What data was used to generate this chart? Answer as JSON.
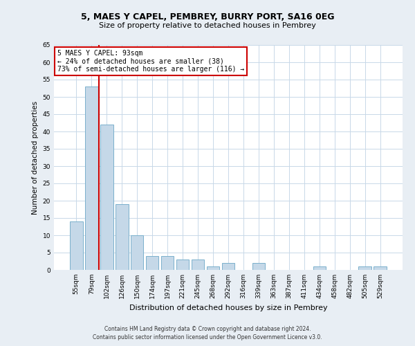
{
  "title": "5, MAES Y CAPEL, PEMBREY, BURRY PORT, SA16 0EG",
  "subtitle": "Size of property relative to detached houses in Pembrey",
  "xlabel": "Distribution of detached houses by size in Pembrey",
  "ylabel": "Number of detached properties",
  "bar_labels": [
    "55sqm",
    "79sqm",
    "102sqm",
    "126sqm",
    "150sqm",
    "174sqm",
    "197sqm",
    "221sqm",
    "245sqm",
    "268sqm",
    "292sqm",
    "316sqm",
    "339sqm",
    "363sqm",
    "387sqm",
    "411sqm",
    "434sqm",
    "458sqm",
    "482sqm",
    "505sqm",
    "529sqm"
  ],
  "bar_values": [
    14,
    53,
    42,
    19,
    10,
    4,
    4,
    3,
    3,
    1,
    2,
    0,
    2,
    0,
    0,
    0,
    1,
    0,
    0,
    1,
    1
  ],
  "bar_color": "#c5d8e8",
  "bar_edge_color": "#7ab0cc",
  "ylim": [
    0,
    65
  ],
  "yticks": [
    0,
    5,
    10,
    15,
    20,
    25,
    30,
    35,
    40,
    45,
    50,
    55,
    60,
    65
  ],
  "vline_color": "#cc0000",
  "vline_pos": 1.5,
  "annotation_title": "5 MAES Y CAPEL: 93sqm",
  "annotation_line1": "← 24% of detached houses are smaller (38)",
  "annotation_line2": "73% of semi-detached houses are larger (116) →",
  "annotation_box_color": "#ffffff",
  "annotation_box_edge": "#cc0000",
  "footer1": "Contains HM Land Registry data © Crown copyright and database right 2024.",
  "footer2": "Contains public sector information licensed under the Open Government Licence v3.0.",
  "background_color": "#e8eef4",
  "plot_background": "#ffffff",
  "grid_color": "#c8d8e8"
}
